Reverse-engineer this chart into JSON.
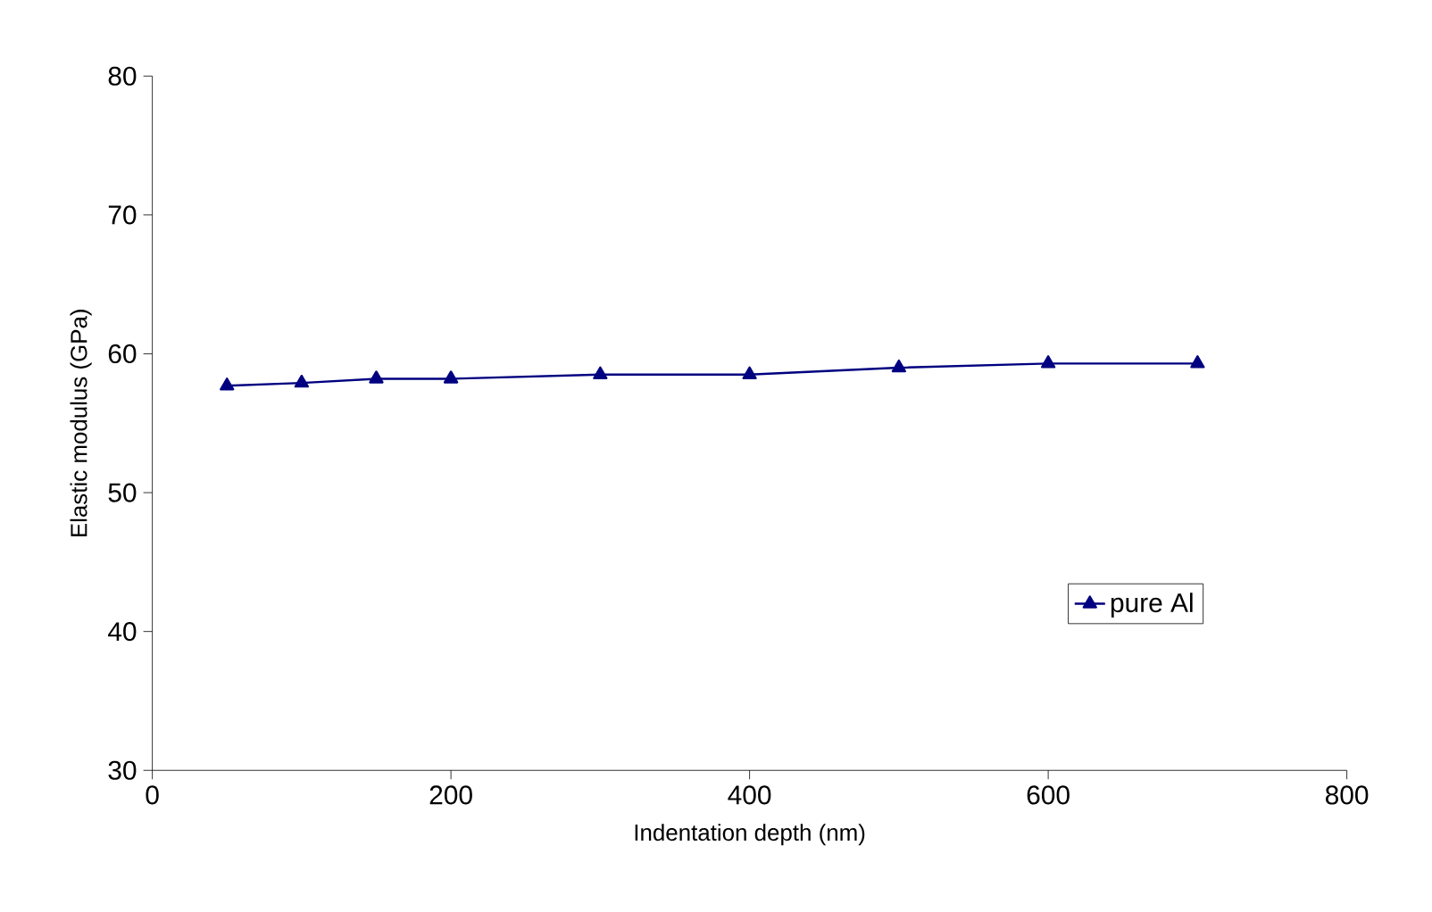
{
  "chart_data": {
    "type": "line",
    "xlabel": "Indentation depth (nm)",
    "ylabel": "Elastic modulus (GPa)",
    "x": [
      50,
      100,
      150,
      200,
      300,
      400,
      500,
      600,
      700
    ],
    "series": [
      {
        "name": "pure Al",
        "color": "#000080",
        "values": [
          57.7,
          57.9,
          58.2,
          58.2,
          58.5,
          58.5,
          59.0,
          59.3,
          59.3
        ]
      }
    ],
    "xlim": [
      0,
      800
    ],
    "ylim": [
      30,
      80
    ],
    "xticks": [
      0,
      200,
      400,
      600,
      800
    ],
    "yticks": [
      30,
      40,
      50,
      60,
      70,
      80
    ],
    "grid": false,
    "legend": "bottom right",
    "marker": "triangle",
    "line_style": "solid"
  }
}
